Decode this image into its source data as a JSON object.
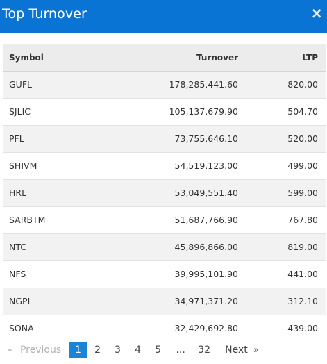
{
  "modal": {
    "title": "Top Turnover",
    "close_glyph": "×",
    "close_icon": "close-icon"
  },
  "table": {
    "headers": {
      "symbol": "Symbol",
      "turnover": "Turnover",
      "ltp": "LTP"
    },
    "rows": [
      {
        "symbol": "GUFL",
        "turnover": "178,285,441.60",
        "ltp": "820.00"
      },
      {
        "symbol": "SJLIC",
        "turnover": "105,137,679.90",
        "ltp": "504.70"
      },
      {
        "symbol": "PFL",
        "turnover": "73,755,646.10",
        "ltp": "520.00"
      },
      {
        "symbol": "SHIVM",
        "turnover": "54,519,123.00",
        "ltp": "499.00"
      },
      {
        "symbol": "HRL",
        "turnover": "53,049,551.40",
        "ltp": "599.00"
      },
      {
        "symbol": "SARBTM",
        "turnover": "51,687,766.90",
        "ltp": "767.80"
      },
      {
        "symbol": "NTC",
        "turnover": "45,896,866.00",
        "ltp": "819.00"
      },
      {
        "symbol": "NFS",
        "turnover": "39,995,101.90",
        "ltp": "441.00"
      },
      {
        "symbol": "NGPL",
        "turnover": "34,971,371.20",
        "ltp": "312.10"
      },
      {
        "symbol": "SONA",
        "turnover": "32,429,692.80",
        "ltp": "439.00"
      }
    ]
  },
  "pagination": {
    "prev_arrow": "«",
    "prev_label": "Previous",
    "pages": [
      "1",
      "2",
      "3",
      "4",
      "5"
    ],
    "active_page": "1",
    "ellipsis": "...",
    "last_page": "32",
    "next_label": "Next",
    "next_arrow": "»",
    "colors": {
      "active_bg": "#1a85d6",
      "header_bg": "#0a74d4"
    }
  }
}
